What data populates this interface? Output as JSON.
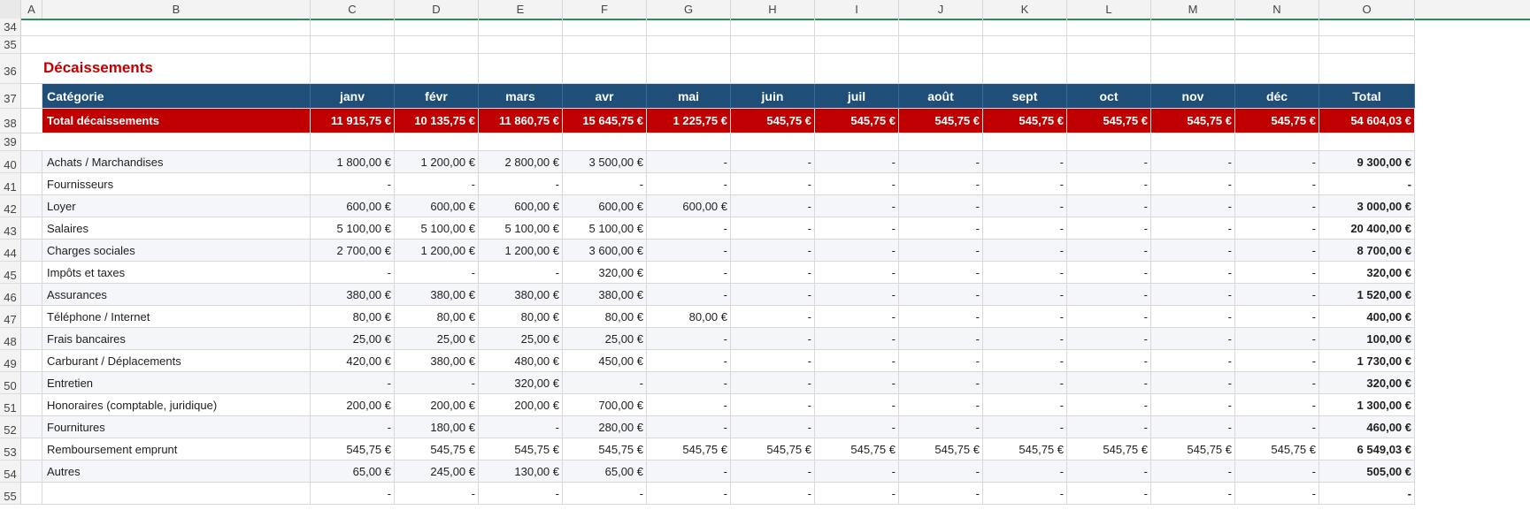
{
  "columns": [
    "A",
    "B",
    "C",
    "D",
    "E",
    "F",
    "G",
    "H",
    "I",
    "J",
    "K",
    "L",
    "M",
    "N",
    "O"
  ],
  "section_title": "Décaissements",
  "header": {
    "category": "Catégorie",
    "months": [
      "janv",
      "févr",
      "mars",
      "avr",
      "mai",
      "juin",
      "juil",
      "août",
      "sept",
      "oct",
      "nov",
      "déc"
    ],
    "total": "Total"
  },
  "total_row": {
    "label": "Total décaissements",
    "values": [
      "11 915,75 €",
      "10 135,75 €",
      "11 860,75 €",
      "15 645,75 €",
      "1 225,75 €",
      "545,75 €",
      "545,75 €",
      "545,75 €",
      "545,75 €",
      "545,75 €",
      "545,75 €",
      "545,75 €"
    ],
    "total": "54 604,03 €"
  },
  "row_numbers": {
    "r34": "34",
    "r35": "35",
    "r36": "36",
    "r37": "37",
    "r38": "38",
    "r39": "39",
    "data": [
      "40",
      "41",
      "42",
      "43",
      "44",
      "45",
      "46",
      "47",
      "48",
      "49",
      "50",
      "51",
      "52",
      "53",
      "54",
      "55"
    ]
  },
  "rows": [
    {
      "label": "Achats / Marchandises",
      "values": [
        "1 800,00 €",
        "1 200,00 €",
        "2 800,00 €",
        "3 500,00 €",
        "-",
        "-",
        "-",
        "-",
        "-",
        "-",
        "-",
        "-"
      ],
      "total": "9 300,00 €"
    },
    {
      "label": "Fournisseurs",
      "values": [
        "-",
        "-",
        "-",
        "-",
        "-",
        "-",
        "-",
        "-",
        "-",
        "-",
        "-",
        "-"
      ],
      "total": "-"
    },
    {
      "label": "Loyer",
      "values": [
        "600,00 €",
        "600,00 €",
        "600,00 €",
        "600,00 €",
        "600,00 €",
        "-",
        "-",
        "-",
        "-",
        "-",
        "-",
        "-"
      ],
      "total": "3 000,00 €"
    },
    {
      "label": "Salaires",
      "values": [
        "5 100,00 €",
        "5 100,00 €",
        "5 100,00 €",
        "5 100,00 €",
        "-",
        "-",
        "-",
        "-",
        "-",
        "-",
        "-",
        "-"
      ],
      "total": "20 400,00 €"
    },
    {
      "label": "Charges sociales",
      "values": [
        "2 700,00 €",
        "1 200,00 €",
        "1 200,00 €",
        "3 600,00 €",
        "-",
        "-",
        "-",
        "-",
        "-",
        "-",
        "-",
        "-"
      ],
      "total": "8 700,00 €"
    },
    {
      "label": "Impôts et taxes",
      "values": [
        "-",
        "-",
        "-",
        "320,00 €",
        "-",
        "-",
        "-",
        "-",
        "-",
        "-",
        "-",
        "-"
      ],
      "total": "320,00 €"
    },
    {
      "label": "Assurances",
      "values": [
        "380,00 €",
        "380,00 €",
        "380,00 €",
        "380,00 €",
        "-",
        "-",
        "-",
        "-",
        "-",
        "-",
        "-",
        "-"
      ],
      "total": "1 520,00 €"
    },
    {
      "label": "Téléphone / Internet",
      "values": [
        "80,00 €",
        "80,00 €",
        "80,00 €",
        "80,00 €",
        "80,00 €",
        "-",
        "-",
        "-",
        "-",
        "-",
        "-",
        "-"
      ],
      "total": "400,00 €"
    },
    {
      "label": "Frais bancaires",
      "values": [
        "25,00 €",
        "25,00 €",
        "25,00 €",
        "25,00 €",
        "-",
        "-",
        "-",
        "-",
        "-",
        "-",
        "-",
        "-"
      ],
      "total": "100,00 €"
    },
    {
      "label": "Carburant / Déplacements",
      "values": [
        "420,00 €",
        "380,00 €",
        "480,00 €",
        "450,00 €",
        "-",
        "-",
        "-",
        "-",
        "-",
        "-",
        "-",
        "-"
      ],
      "total": "1 730,00 €"
    },
    {
      "label": "Entretien",
      "values": [
        "-",
        "-",
        "320,00 €",
        "-",
        "-",
        "-",
        "-",
        "-",
        "-",
        "-",
        "-",
        "-"
      ],
      "total": "320,00 €"
    },
    {
      "label": "Honoraires (comptable, juridique)",
      "values": [
        "200,00 €",
        "200,00 €",
        "200,00 €",
        "700,00 €",
        "-",
        "-",
        "-",
        "-",
        "-",
        "-",
        "-",
        "-"
      ],
      "total": "1 300,00 €"
    },
    {
      "label": "Fournitures",
      "values": [
        "-",
        "180,00 €",
        "-",
        "280,00 €",
        "-",
        "-",
        "-",
        "-",
        "-",
        "-",
        "-",
        "-"
      ],
      "total": "460,00 €"
    },
    {
      "label": "Remboursement emprunt",
      "values": [
        "545,75 €",
        "545,75 €",
        "545,75 €",
        "545,75 €",
        "545,75 €",
        "545,75 €",
        "545,75 €",
        "545,75 €",
        "545,75 €",
        "545,75 €",
        "545,75 €",
        "545,75 €"
      ],
      "total": "6 549,03 €"
    },
    {
      "label": "Autres",
      "values": [
        "65,00 €",
        "245,00 €",
        "130,00 €",
        "65,00 €",
        "-",
        "-",
        "-",
        "-",
        "-",
        "-",
        "-",
        "-"
      ],
      "total": "505,00 €"
    },
    {
      "label": "",
      "values": [
        "-",
        "-",
        "-",
        "-",
        "-",
        "-",
        "-",
        "-",
        "-",
        "-",
        "-",
        "-"
      ],
      "total": "-"
    }
  ],
  "colors": {
    "header_bg": "#1f4e78",
    "total_bg": "#c00000",
    "title": "#c00000"
  }
}
